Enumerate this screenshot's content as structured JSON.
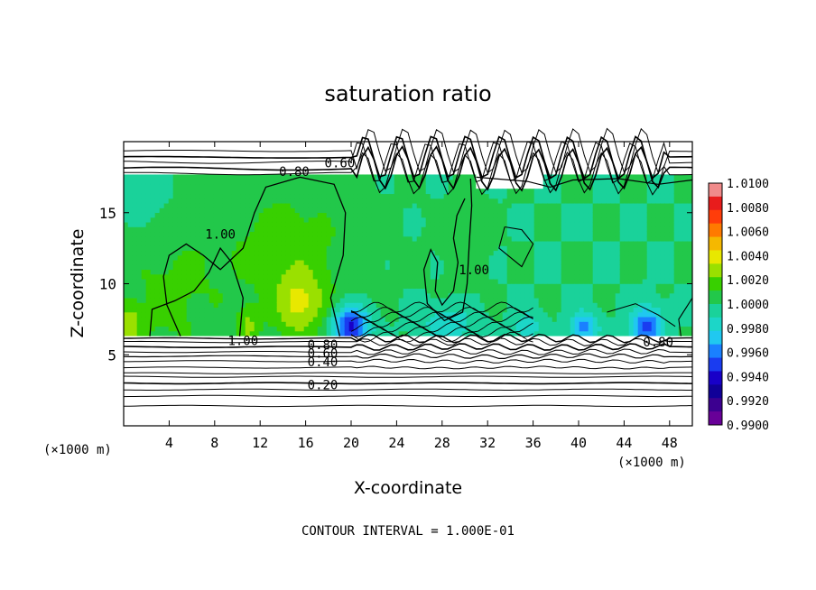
{
  "chart_data": {
    "type": "heatmap",
    "title": "saturation ratio",
    "xlabel": "X-coordinate",
    "ylabel": "Z-coordinate",
    "x_unit_left": "(×1000 m)",
    "x_unit_right": "(×1000 m)",
    "xlim": [
      0,
      50
    ],
    "ylim": [
      0,
      20
    ],
    "x_ticks": [
      4,
      8,
      12,
      16,
      20,
      24,
      28,
      32,
      36,
      40,
      44,
      48
    ],
    "y_ticks": [
      5,
      10,
      15
    ],
    "footer": "CONTOUR INTERVAL = 1.000E-01",
    "colorbar": {
      "labels": [
        "1.0100",
        "1.0080",
        "1.0060",
        "1.0040",
        "1.0020",
        "1.0000",
        "0.9980",
        "0.9960",
        "0.9940",
        "0.9920",
        "0.9900"
      ],
      "min": 0.99,
      "max": 1.01,
      "colors": [
        "#f08a8a",
        "#e81c1c",
        "#ff3d0a",
        "#ff7a00",
        "#f5b800",
        "#e8e800",
        "#9ae000",
        "#38d000",
        "#22c84a",
        "#1ad29a",
        "#1cd6c8",
        "#20c8f0",
        "#1a80ff",
        "#1a3cf0",
        "#1800c8",
        "#100098",
        "#3c0090",
        "#680098"
      ]
    },
    "contour_labels": [
      {
        "text": "0.60",
        "x": 19.0,
        "z": 18.5
      },
      {
        "text": "0.80",
        "x": 15.0,
        "z": 17.9
      },
      {
        "text": "1.00",
        "x": 8.5,
        "z": 13.5
      },
      {
        "text": "1.00",
        "x": 30.8,
        "z": 11.0
      },
      {
        "text": "1.00",
        "x": 10.5,
        "z": 6.0
      },
      {
        "text": "0.80",
        "x": 17.5,
        "z": 5.7
      },
      {
        "text": "0.60",
        "x": 17.5,
        "z": 5.1
      },
      {
        "text": "0.40",
        "x": 17.5,
        "z": 4.5
      },
      {
        "text": "0.20",
        "x": 17.5,
        "z": 2.9
      },
      {
        "text": "0.80",
        "x": 47.0,
        "z": 5.9
      }
    ]
  }
}
